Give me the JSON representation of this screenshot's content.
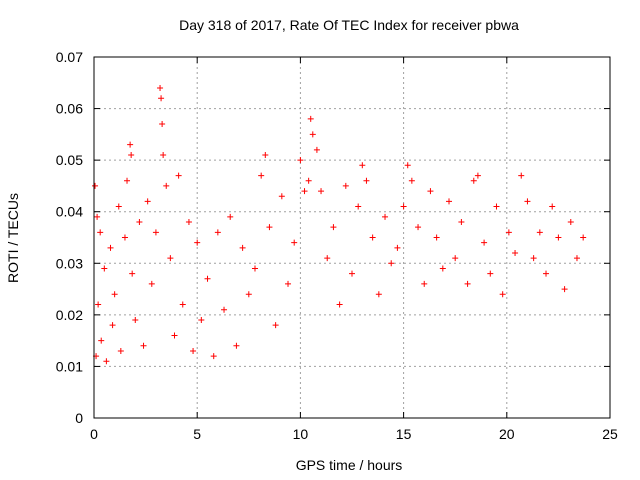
{
  "chart_data": {
    "type": "scatter",
    "title": "Day 318 of 2017, Rate Of TEC Index for receiver pbwa",
    "xlabel": "GPS time / hours",
    "ylabel": "ROTI / TECUs",
    "xlim": [
      0,
      25
    ],
    "ylim": [
      0,
      0.07
    ],
    "xticks": [
      "0",
      "5",
      "10",
      "15",
      "20",
      "25"
    ],
    "yticks": [
      "0",
      "0.01",
      "0.02",
      "0.03",
      "0.04",
      "0.05",
      "0.06",
      "0.07"
    ],
    "grid": true,
    "marker": "plus",
    "color": "#ff0000",
    "series": [
      {
        "x": [
          0.05,
          0.1,
          0.15,
          0.2,
          0.3,
          0.35,
          0.5,
          0.6,
          0.8,
          0.9,
          1.0,
          1.2,
          1.3,
          1.5,
          1.6,
          1.75,
          1.8,
          1.85,
          2.0,
          2.2,
          2.4,
          2.6,
          2.8,
          3.0,
          3.2,
          3.25,
          3.3,
          3.35,
          3.5,
          3.7,
          3.9,
          4.1,
          4.3,
          4.6,
          4.8,
          5.0,
          5.2,
          5.5,
          5.8,
          6.0,
          6.3,
          6.6,
          6.9,
          7.2,
          7.5,
          7.8,
          8.1,
          8.3,
          8.5,
          8.8,
          9.1,
          9.4,
          9.7,
          10.0,
          10.2,
          10.4,
          10.5,
          10.6,
          10.8,
          11.0,
          11.3,
          11.6,
          11.9,
          12.2,
          12.5,
          12.8,
          13.0,
          13.2,
          13.5,
          13.8,
          14.1,
          14.4,
          14.7,
          15.0,
          15.2,
          15.4,
          15.7,
          16.0,
          16.3,
          16.6,
          16.9,
          17.2,
          17.5,
          17.8,
          18.1,
          18.4,
          18.6,
          18.9,
          19.2,
          19.5,
          19.8,
          20.1,
          20.4,
          20.7,
          21.0,
          21.3,
          21.6,
          21.9,
          22.2,
          22.5,
          22.8,
          23.1,
          23.4,
          23.7
        ],
        "y": [
          0.045,
          0.012,
          0.039,
          0.022,
          0.036,
          0.015,
          0.029,
          0.011,
          0.033,
          0.018,
          0.024,
          0.041,
          0.013,
          0.035,
          0.046,
          0.053,
          0.051,
          0.028,
          0.019,
          0.038,
          0.014,
          0.042,
          0.026,
          0.036,
          0.064,
          0.062,
          0.057,
          0.051,
          0.045,
          0.031,
          0.016,
          0.047,
          0.022,
          0.038,
          0.013,
          0.034,
          0.019,
          0.027,
          0.012,
          0.036,
          0.021,
          0.039,
          0.014,
          0.033,
          0.024,
          0.029,
          0.047,
          0.051,
          0.037,
          0.018,
          0.043,
          0.026,
          0.034,
          0.05,
          0.044,
          0.046,
          0.058,
          0.055,
          0.052,
          0.044,
          0.031,
          0.037,
          0.022,
          0.045,
          0.028,
          0.041,
          0.049,
          0.046,
          0.035,
          0.024,
          0.039,
          0.03,
          0.033,
          0.041,
          0.049,
          0.046,
          0.037,
          0.026,
          0.044,
          0.035,
          0.029,
          0.042,
          0.031,
          0.038,
          0.026,
          0.046,
          0.047,
          0.034,
          0.028,
          0.041,
          0.024,
          0.036,
          0.032,
          0.047,
          0.042,
          0.031,
          0.036,
          0.028,
          0.041,
          0.035,
          0.025,
          0.038,
          0.031,
          0.035
        ]
      }
    ]
  }
}
